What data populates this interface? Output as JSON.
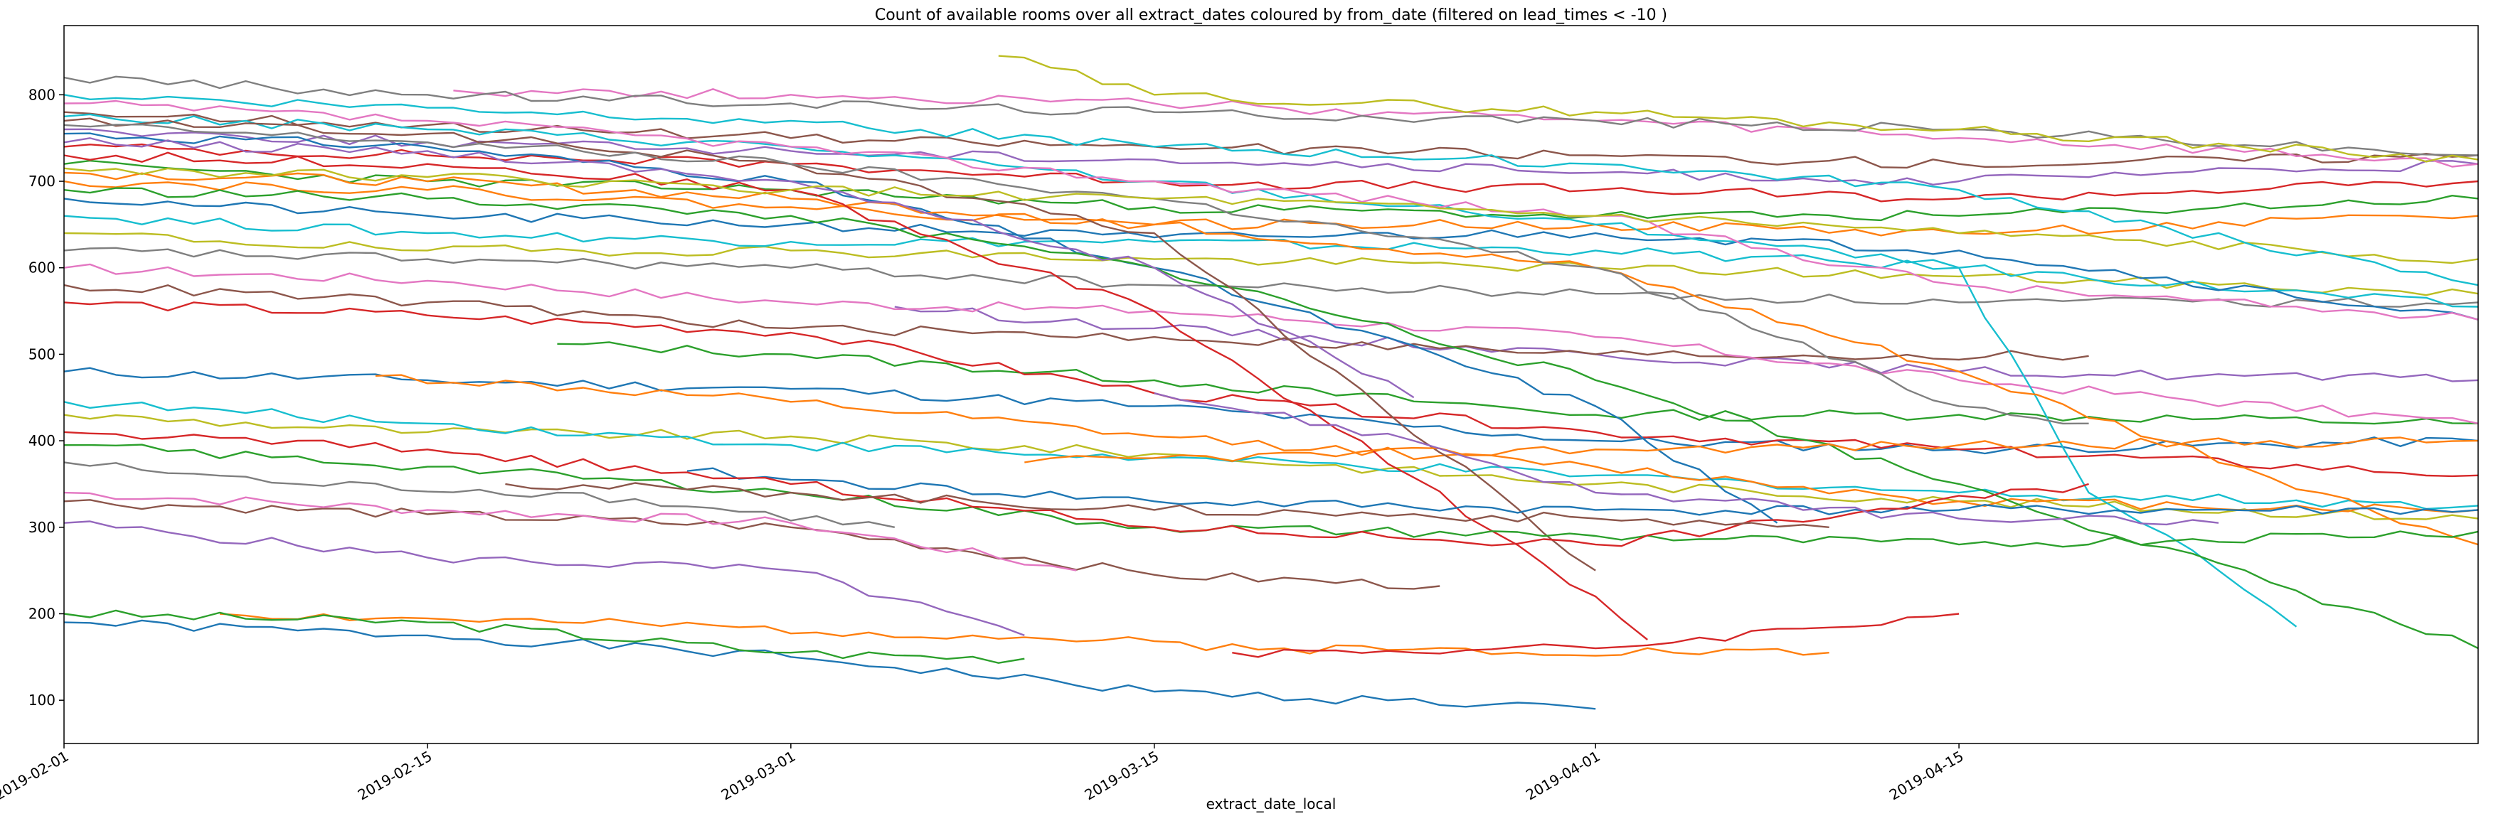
{
  "chart_data": {
    "type": "line",
    "title": "Count of available rooms over all extract_dates coloured by from_date (filtered on lead_times < -10 )",
    "xlabel": "extract_date_local",
    "ylabel": "",
    "x_range": [
      "2019-02-01",
      "2019-05-05"
    ],
    "ylim": [
      50,
      880
    ],
    "x_ticks": [
      "2019-02-01",
      "2019-02-15",
      "2019-03-01",
      "2019-03-15",
      "2019-04-01",
      "2019-04-15"
    ],
    "y_ticks": [
      100,
      200,
      300,
      400,
      500,
      600,
      700,
      800
    ],
    "grid": false,
    "legend": "none",
    "colors": [
      "#1f77b4",
      "#ff7f0e",
      "#2ca02c",
      "#d62728",
      "#9467bd",
      "#8c564b",
      "#e377c2",
      "#7f7f7f",
      "#bcbd22",
      "#17becf"
    ],
    "series": [
      {
        "x": [
          "2019-02-01",
          "2019-02-15",
          "2019-03-01",
          "2019-03-15",
          "2019-04-01"
        ],
        "y": [
          190,
          175,
          150,
          110,
          90
        ]
      },
      {
        "x": [
          "2019-02-07",
          "2019-02-20",
          "2019-03-08",
          "2019-03-20",
          "2019-04-10"
        ],
        "y": [
          200,
          190,
          175,
          160,
          155
        ]
      },
      {
        "x": [
          "2019-02-01",
          "2019-02-15",
          "2019-03-01",
          "2019-03-10"
        ],
        "y": [
          200,
          190,
          155,
          148
        ]
      },
      {
        "x": [
          "2019-03-18",
          "2019-04-01",
          "2019-04-15"
        ],
        "y": [
          155,
          160,
          200
        ]
      },
      {
        "x": [
          "2019-02-01",
          "2019-02-15",
          "2019-03-01",
          "2019-03-10"
        ],
        "y": [
          305,
          265,
          250,
          175
        ]
      },
      {
        "x": [
          "2019-02-01",
          "2019-02-15",
          "2019-03-01",
          "2019-03-15",
          "2019-03-26"
        ],
        "y": [
          330,
          315,
          300,
          245,
          232
        ]
      },
      {
        "x": [
          "2019-02-01",
          "2019-02-15",
          "2019-03-01",
          "2019-03-12"
        ],
        "y": [
          340,
          320,
          305,
          250
        ]
      },
      {
        "x": [
          "2019-02-01",
          "2019-02-10",
          "2019-02-20",
          "2019-03-05"
        ],
        "y": [
          375,
          350,
          340,
          300
        ]
      },
      {
        "x": [
          "2019-02-01",
          "2019-02-15",
          "2019-03-01",
          "2019-03-15",
          "2019-04-01",
          "2019-04-15",
          "2019-05-05"
        ],
        "y": [
          430,
          410,
          405,
          385,
          350,
          330,
          310
        ]
      },
      {
        "x": [
          "2019-02-01",
          "2019-02-15",
          "2019-03-01",
          "2019-03-15",
          "2019-04-01",
          "2019-04-15",
          "2019-05-05"
        ],
        "y": [
          445,
          420,
          395,
          380,
          360,
          340,
          325
        ]
      },
      {
        "x": [
          "2019-02-01",
          "2019-02-15",
          "2019-03-01",
          "2019-03-15",
          "2019-04-01",
          "2019-04-15",
          "2019-05-05"
        ],
        "y": [
          480,
          470,
          460,
          440,
          400,
          390,
          400
        ]
      },
      {
        "x": [
          "2019-02-13",
          "2019-03-01",
          "2019-03-15",
          "2019-04-01",
          "2019-04-15",
          "2019-05-05"
        ],
        "y": [
          475,
          445,
          405,
          370,
          330,
          320
        ]
      },
      {
        "x": [
          "2019-02-20",
          "2019-03-01",
          "2019-03-15",
          "2019-04-01",
          "2019-04-15",
          "2019-05-05"
        ],
        "y": [
          512,
          500,
          470,
          430,
          430,
          420
        ]
      },
      {
        "x": [
          "2019-02-01",
          "2019-02-15",
          "2019-03-01",
          "2019-03-15",
          "2019-04-01",
          "2019-04-15",
          "2019-05-05"
        ],
        "y": [
          560,
          545,
          525,
          455,
          410,
          390,
          360
        ]
      },
      {
        "x": [
          "2019-03-05",
          "2019-03-15",
          "2019-04-01",
          "2019-04-15",
          "2019-05-05"
        ],
        "y": [
          555,
          530,
          500,
          480,
          470
        ]
      },
      {
        "x": [
          "2019-02-01",
          "2019-02-15",
          "2019-03-01",
          "2019-03-15",
          "2019-04-01",
          "2019-04-20"
        ],
        "y": [
          580,
          560,
          530,
          520,
          500,
          498
        ]
      },
      {
        "x": [
          "2019-02-01",
          "2019-02-15",
          "2019-03-01",
          "2019-03-15",
          "2019-04-01",
          "2019-04-15",
          "2019-05-05"
        ],
        "y": [
          600,
          585,
          560,
          550,
          520,
          470,
          420
        ]
      },
      {
        "x": [
          "2019-02-01",
          "2019-02-15",
          "2019-03-01",
          "2019-03-15",
          "2019-04-01",
          "2019-04-15",
          "2019-05-05"
        ],
        "y": [
          620,
          610,
          600,
          580,
          570,
          560,
          560
        ]
      },
      {
        "x": [
          "2019-02-01",
          "2019-02-15",
          "2019-03-01",
          "2019-03-15",
          "2019-04-01",
          "2019-04-15",
          "2019-05-05"
        ],
        "y": [
          640,
          620,
          620,
          610,
          600,
          590,
          570
        ]
      },
      {
        "x": [
          "2019-02-01",
          "2019-02-15",
          "2019-03-01",
          "2019-03-15",
          "2019-04-01",
          "2019-04-15",
          "2019-05-05"
        ],
        "y": [
          660,
          640,
          630,
          630,
          620,
          600,
          555
        ]
      },
      {
        "x": [
          "2019-02-01",
          "2019-02-15",
          "2019-03-01",
          "2019-03-15",
          "2019-04-01",
          "2019-04-15",
          "2019-05-05"
        ],
        "y": [
          680,
          660,
          650,
          635,
          640,
          620,
          540
        ]
      },
      {
        "x": [
          "2019-02-01",
          "2019-02-15",
          "2019-03-01",
          "2019-03-15",
          "2019-04-01",
          "2019-04-15",
          "2019-05-05"
        ],
        "y": [
          700,
          690,
          670,
          650,
          650,
          640,
          660
        ]
      },
      {
        "x": [
          "2019-02-01",
          "2019-02-15",
          "2019-03-01",
          "2019-03-15",
          "2019-04-01",
          "2019-04-15",
          "2019-05-05"
        ],
        "y": [
          720,
          700,
          690,
          670,
          660,
          660,
          680
        ]
      },
      {
        "x": [
          "2019-02-01",
          "2019-02-15",
          "2019-03-01",
          "2019-03-15",
          "2019-04-01",
          "2019-04-15",
          "2019-05-05"
        ],
        "y": [
          740,
          730,
          720,
          700,
          690,
          680,
          700
        ]
      },
      {
        "x": [
          "2019-02-01",
          "2019-02-15",
          "2019-03-01",
          "2019-03-15",
          "2019-04-01",
          "2019-04-15",
          "2019-05-05"
        ],
        "y": [
          760,
          745,
          735,
          725,
          710,
          700,
          720
        ]
      },
      {
        "x": [
          "2019-02-01",
          "2019-02-15",
          "2019-03-01",
          "2019-03-15",
          "2019-04-01",
          "2019-04-15",
          "2019-05-05"
        ],
        "y": [
          780,
          765,
          750,
          740,
          730,
          720,
          730
        ]
      },
      {
        "x": [
          "2019-02-16",
          "2019-03-01",
          "2019-03-15",
          "2019-04-01",
          "2019-04-15",
          "2019-05-05"
        ],
        "y": [
          805,
          800,
          790,
          770,
          750,
          720
        ]
      },
      {
        "x": [
          "2019-02-01",
          "2019-02-15",
          "2019-03-01",
          "2019-03-15",
          "2019-04-01",
          "2019-04-15",
          "2019-05-05"
        ],
        "y": [
          820,
          800,
          790,
          780,
          770,
          760,
          730
        ]
      },
      {
        "x": [
          "2019-03-09",
          "2019-03-15",
          "2019-04-01",
          "2019-04-15",
          "2019-05-05"
        ],
        "y": [
          845,
          800,
          780,
          760,
          725
        ]
      },
      {
        "x": [
          "2019-02-01",
          "2019-02-15",
          "2019-03-01",
          "2019-03-15",
          "2019-04-01",
          "2019-04-15",
          "2019-04-20",
          "2019-04-25",
          "2019-04-28"
        ],
        "y": [
          775,
          760,
          740,
          700,
          650,
          600,
          340,
          250,
          185
        ]
      },
      {
        "x": [
          "2019-02-01",
          "2019-02-15",
          "2019-03-01",
          "2019-03-15",
          "2019-04-01",
          "2019-04-08"
        ],
        "y": [
          755,
          740,
          700,
          600,
          440,
          305
        ]
      },
      {
        "x": [
          "2019-02-01",
          "2019-02-15",
          "2019-03-01",
          "2019-03-15",
          "2019-04-01",
          "2019-04-15",
          "2019-05-05"
        ],
        "y": [
          710,
          700,
          680,
          650,
          600,
          480,
          280
        ]
      },
      {
        "x": [
          "2019-02-01",
          "2019-02-15",
          "2019-03-01",
          "2019-03-15",
          "2019-04-01",
          "2019-04-15",
          "2019-05-05"
        ],
        "y": [
          690,
          680,
          660,
          600,
          470,
          350,
          160
        ]
      },
      {
        "x": [
          "2019-02-01",
          "2019-02-15",
          "2019-03-01",
          "2019-03-15",
          "2019-04-01",
          "2019-04-03"
        ],
        "y": [
          730,
          720,
          690,
          550,
          220,
          170
        ]
      },
      {
        "x": [
          "2019-02-01",
          "2019-02-15",
          "2019-03-01",
          "2019-03-15",
          "2019-03-25"
        ],
        "y": [
          745,
          735,
          700,
          600,
          450
        ]
      },
      {
        "x": [
          "2019-02-01",
          "2019-02-15",
          "2019-03-01",
          "2019-03-15",
          "2019-04-01"
        ],
        "y": [
          770,
          755,
          720,
          640,
          250
        ]
      },
      {
        "x": [
          "2019-02-01",
          "2019-02-15",
          "2019-03-01",
          "2019-03-15",
          "2019-04-01",
          "2019-04-15",
          "2019-05-05"
        ],
        "y": [
          790,
          770,
          740,
          700,
          660,
          580,
          540
        ]
      },
      {
        "x": [
          "2019-02-01",
          "2019-02-15",
          "2019-03-01",
          "2019-03-15",
          "2019-04-01",
          "2019-04-15",
          "2019-04-20"
        ],
        "y": [
          765,
          745,
          720,
          680,
          600,
          440,
          420
        ]
      },
      {
        "x": [
          "2019-02-01",
          "2019-02-15",
          "2019-03-01",
          "2019-03-15",
          "2019-04-01",
          "2019-04-15",
          "2019-05-05"
        ],
        "y": [
          715,
          705,
          690,
          680,
          660,
          640,
          610
        ]
      },
      {
        "x": [
          "2019-02-01",
          "2019-02-15",
          "2019-03-01",
          "2019-03-15",
          "2019-04-01",
          "2019-04-15",
          "2019-05-05"
        ],
        "y": [
          800,
          785,
          770,
          740,
          720,
          690,
          580
        ]
      },
      {
        "x": [
          "2019-02-25",
          "2019-03-01",
          "2019-03-15",
          "2019-04-01",
          "2019-04-15",
          "2019-05-05"
        ],
        "y": [
          365,
          355,
          330,
          320,
          320,
          320
        ]
      },
      {
        "x": [
          "2019-03-10",
          "2019-03-15",
          "2019-04-01",
          "2019-04-15",
          "2019-05-05"
        ],
        "y": [
          375,
          380,
          390,
          395,
          400
        ]
      },
      {
        "x": [
          "2019-02-01",
          "2019-02-15",
          "2019-03-01",
          "2019-03-15",
          "2019-04-01",
          "2019-04-15",
          "2019-05-05"
        ],
        "y": [
          395,
          370,
          340,
          300,
          290,
          280,
          295
        ]
      },
      {
        "x": [
          "2019-02-01",
          "2019-02-15",
          "2019-03-01",
          "2019-03-15",
          "2019-04-01",
          "2019-04-20"
        ],
        "y": [
          410,
          390,
          350,
          300,
          280,
          350
        ]
      },
      {
        "x": [
          "2019-03-15",
          "2019-03-25",
          "2019-04-01",
          "2019-04-15",
          "2019-04-25"
        ],
        "y": [
          455,
          400,
          340,
          310,
          305
        ]
      },
      {
        "x": [
          "2019-02-18",
          "2019-03-01",
          "2019-03-15",
          "2019-04-01",
          "2019-04-10"
        ],
        "y": [
          350,
          340,
          320,
          310,
          300
        ]
      }
    ]
  }
}
